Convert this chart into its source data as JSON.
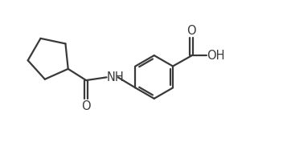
{
  "background_color": "#ffffff",
  "line_color": "#3a3a3a",
  "line_width": 1.6,
  "text_color": "#3a3a3a",
  "font_size": 10.5,
  "figsize": [
    3.62,
    1.77
  ],
  "dpi": 100,
  "xlim": [
    0,
    9.5
  ],
  "ylim": [
    0,
    4.7
  ]
}
